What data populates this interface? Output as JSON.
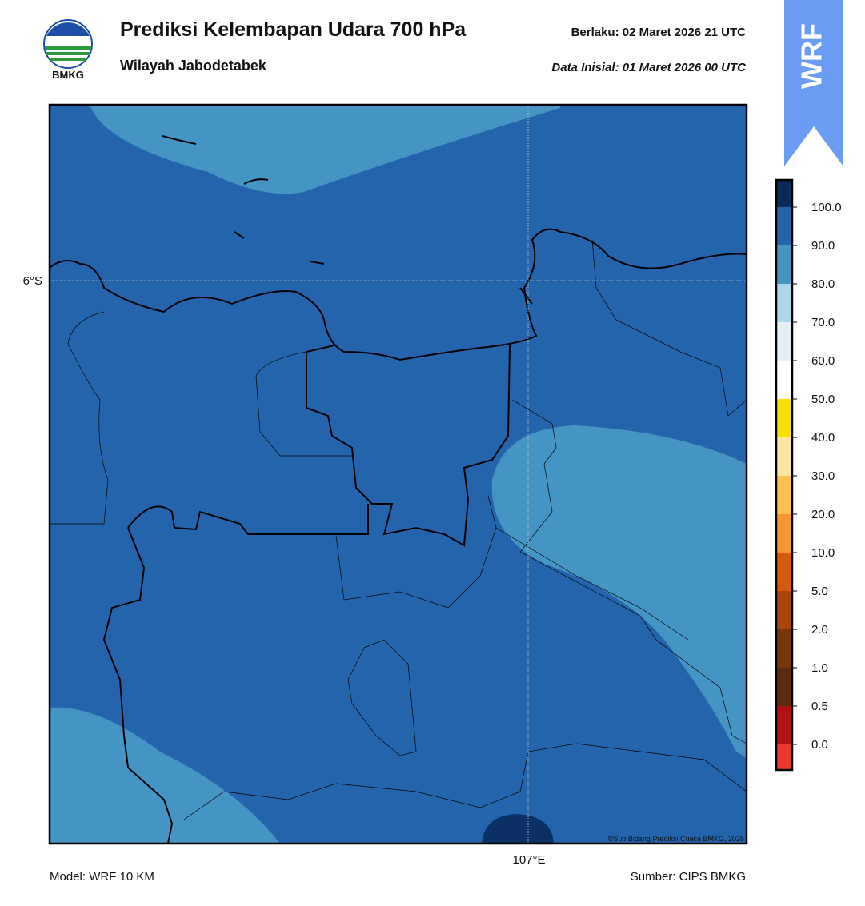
{
  "header": {
    "title": "Prediksi Kelembapan Udara 700 hPa",
    "subtitle": "Wilayah Jabodetabek",
    "valid": "Berlaku:  02 Maret 2026 21 UTC",
    "init": "Data Inisial:  01 Maret 2026 00 UTC",
    "logo": "BMKG",
    "badge": "WRF"
  },
  "map": {
    "lat_label": "6°S",
    "lon_label": "107°E",
    "credit": "©Sub Bidang Prediksi Cuaca BMKG, 2026"
  },
  "colorbar": {
    "levels": [
      {
        "label": "0.0",
        "color": "#e8392f"
      },
      {
        "label": "0.5",
        "color": "#b01212"
      },
      {
        "label": "1.0",
        "color": "#5c2a0e"
      },
      {
        "label": "2.0",
        "color": "#7a360a"
      },
      {
        "label": "5.0",
        "color": "#a8440a"
      },
      {
        "label": "10.0",
        "color": "#d45a0c"
      },
      {
        "label": "20.0",
        "color": "#f6962e"
      },
      {
        "label": "30.0",
        "color": "#fcc050"
      },
      {
        "label": "40.0",
        "color": "#fde4a0"
      },
      {
        "label": "50.0",
        "color": "#f6e000"
      },
      {
        "label": "60.0",
        "color": "#ffffff"
      },
      {
        "label": "70.0",
        "color": "#e6eef6"
      },
      {
        "label": "80.0",
        "color": "#acd6ea"
      },
      {
        "label": "90.0",
        "color": "#4494c4"
      },
      {
        "label": "100.0",
        "color": "#2464ac"
      }
    ],
    "top_colors": [
      "#0a2a5a",
      "#2a0a50"
    ]
  },
  "footer": {
    "model": "Model: WRF 10 KM",
    "source": "Sumber: CIPS BMKG"
  }
}
